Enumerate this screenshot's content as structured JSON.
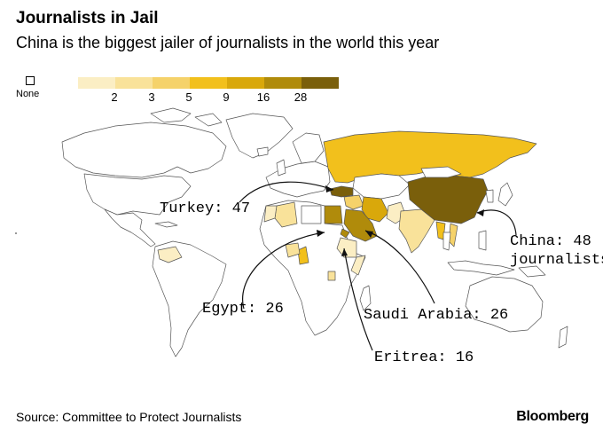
{
  "header": {
    "title": "Journalists in Jail",
    "subtitle": "China is the biggest jailer of journalists in the world this year"
  },
  "legend": {
    "none_label": "None",
    "bins": [
      {
        "label": "",
        "color": "#fbeec4"
      },
      {
        "label": "2",
        "color": "#f9e29a"
      },
      {
        "label": "3",
        "color": "#f5d26a"
      },
      {
        "label": "5",
        "color": "#f2c01c"
      },
      {
        "label": "9",
        "color": "#d9a80b"
      },
      {
        "label": "16",
        "color": "#b08b0b"
      },
      {
        "label": "28",
        "color": "#7a5f0b"
      }
    ]
  },
  "map": {
    "ocean_color": "#ffffff",
    "border_color": "#555555",
    "callouts": [
      {
        "country": "Turkey",
        "text": "Turkey: 47",
        "value": 47
      },
      {
        "country": "China",
        "text": "China: 48",
        "text2": "journalists",
        "value": 48
      },
      {
        "country": "Egypt",
        "text": "Egypt: 26",
        "value": 26
      },
      {
        "country": "Saudi Arabia",
        "text": "Saudi Arabia: 26",
        "value": 26
      },
      {
        "country": "Eritrea",
        "text": "Eritrea: 16",
        "value": 16
      }
    ]
  },
  "footer": {
    "source": "Source: Committee to Protect Journalists",
    "brand": "Bloomberg"
  }
}
